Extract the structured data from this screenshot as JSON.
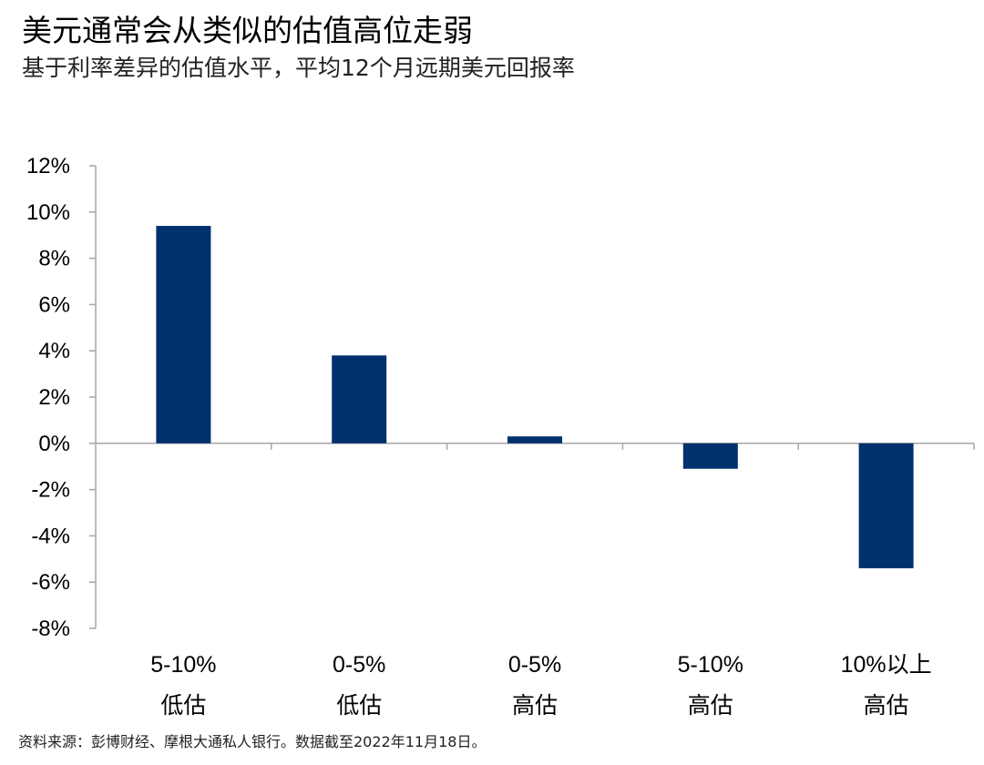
{
  "title": "美元通常会从类似的估值高位走弱",
  "subtitle": "基于利率差异的估值水平，平均12个月远期美元回报率",
  "source": "资料来源：彭博财经、摩根大通私人银行。数据截至2022年11月18日。",
  "colors": {
    "bar": "#00306E",
    "axis": "#A6A6A6",
    "text": "#000000"
  },
  "chart_data": {
    "type": "bar",
    "title": "美元通常会从类似的估值高位走弱",
    "subtitle": "基于利率差异的估值水平，平均12个月远期美元回报率",
    "categories": [
      [
        "5-10%",
        "低估"
      ],
      [
        "0-5%",
        "低估"
      ],
      [
        "0-5%",
        "高估"
      ],
      [
        "5-10%",
        "高估"
      ],
      [
        "10%以上",
        "高估"
      ]
    ],
    "values": [
      9.4,
      3.8,
      0.3,
      -1.1,
      -5.4
    ],
    "ylim": [
      -8,
      12
    ],
    "yticks": [
      12,
      10,
      8,
      6,
      4,
      2,
      0,
      -2,
      -4,
      -6,
      -8
    ],
    "ytick_labels": [
      "12%",
      "10%",
      "8%",
      "6%",
      "4%",
      "2%",
      "0%",
      "-2%",
      "-4%",
      "-6%",
      "-8%"
    ],
    "xlabel": "",
    "ylabel": "",
    "grid": false,
    "legend": "none"
  }
}
